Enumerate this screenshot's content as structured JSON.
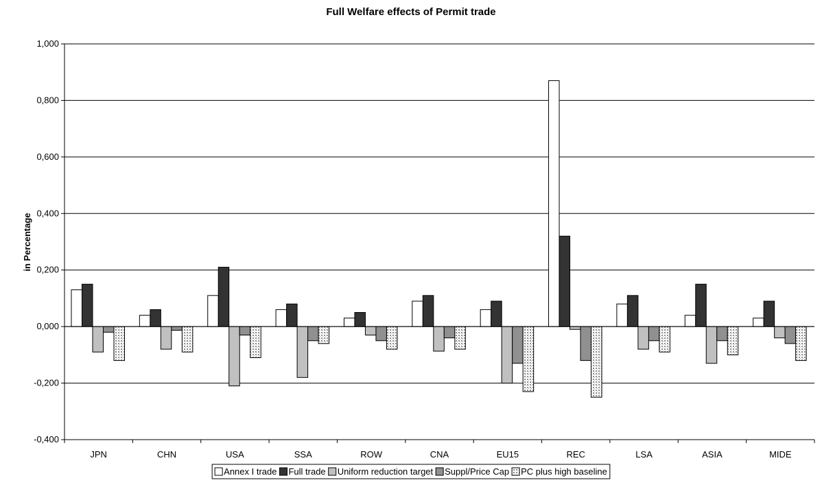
{
  "chart_data": {
    "type": "bar",
    "title": "Full Welfare effects of Permit trade",
    "xlabel": "",
    "ylabel": "in Percentage",
    "categories": [
      "JPN",
      "CHN",
      "USA",
      "SSA",
      "ROW",
      "CNA",
      "EU15",
      "REC",
      "LSA",
      "ASIA",
      "MIDE"
    ],
    "ylim": [
      -0.4,
      1.0
    ],
    "yticks": [
      -0.4,
      -0.2,
      0.0,
      0.2,
      0.4,
      0.6,
      0.8,
      1.0
    ],
    "ytick_labels": [
      "-0,400",
      "-0,200",
      "0,000",
      "0,200",
      "0,400",
      "0,600",
      "0,800",
      "1,000"
    ],
    "grid": true,
    "legend_position": "bottom",
    "series": [
      {
        "name": "Annex I trade",
        "color": "#ffffff",
        "pattern": "solid",
        "values": [
          0.13,
          0.04,
          0.11,
          0.06,
          0.03,
          0.09,
          0.06,
          0.87,
          0.08,
          0.04,
          0.03
        ]
      },
      {
        "name": "Full trade",
        "color": "#333333",
        "pattern": "solid",
        "values": [
          0.15,
          0.06,
          0.21,
          0.08,
          0.05,
          0.11,
          0.09,
          0.32,
          0.11,
          0.15,
          0.09
        ]
      },
      {
        "name": "Uniform reduction target",
        "color": "#c0c0c0",
        "pattern": "solid",
        "values": [
          -0.09,
          -0.08,
          -0.21,
          -0.18,
          -0.03,
          -0.087,
          -0.2,
          -0.01,
          -0.08,
          -0.13,
          -0.04
        ]
      },
      {
        "name": "Suppl/Price Cap",
        "color": "#909090",
        "pattern": "solid",
        "values": [
          -0.02,
          -0.013,
          -0.03,
          -0.05,
          -0.05,
          -0.04,
          -0.13,
          -0.12,
          -0.05,
          -0.05,
          -0.06
        ]
      },
      {
        "name": "PC plus high baseline",
        "color": "#ffffff",
        "pattern": "bricks",
        "values": [
          -0.12,
          -0.09,
          -0.11,
          -0.06,
          -0.08,
          -0.08,
          -0.23,
          -0.25,
          -0.09,
          -0.1,
          -0.12
        ]
      }
    ]
  }
}
